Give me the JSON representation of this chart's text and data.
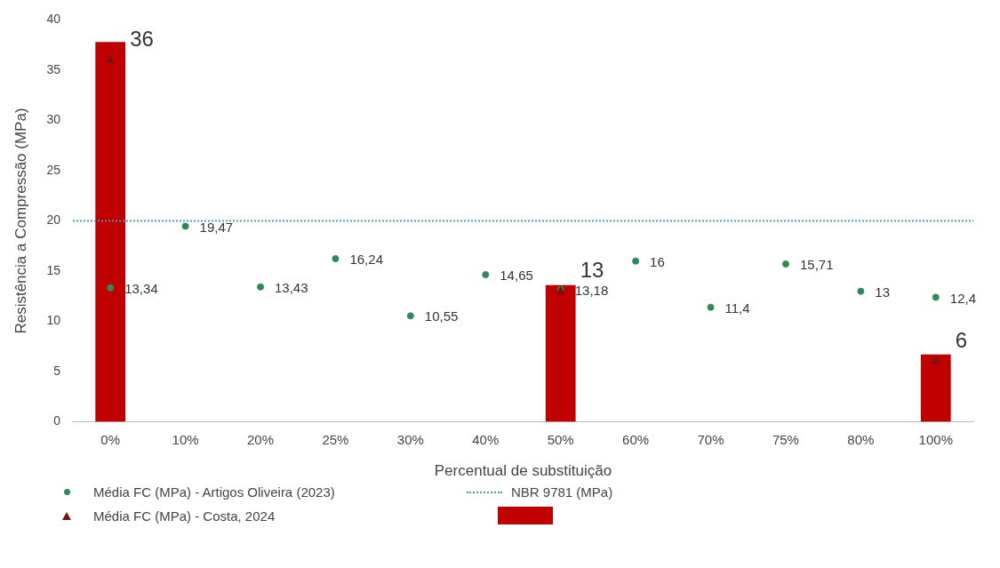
{
  "chart_data": {
    "type": "bar",
    "xlabel": "Percentual de substituição",
    "ylabel": "Resistência a Compressão (MPa)",
    "categories": [
      "0%",
      "10%",
      "20%",
      "25%",
      "30%",
      "40%",
      "50%",
      "60%",
      "70%",
      "75%",
      "80%",
      "100%"
    ],
    "series": [
      {
        "color": "#c00000",
        "values": [
          37.8,
          null,
          null,
          null,
          null,
          null,
          13.6,
          null,
          null,
          null,
          null,
          6.7
        ]
      },
      {
        "type": "scatter",
        "name": "Média FC (MPa) - Costa, 2024",
        "color": "#7b1111",
        "marker": "triangle",
        "values": [
          36,
          null,
          null,
          null,
          null,
          null,
          13,
          null,
          null,
          null,
          null,
          6
        ],
        "value_labels": [
          "36",
          null,
          null,
          null,
          null,
          null,
          "13",
          null,
          null,
          null,
          null,
          "6"
        ]
      },
      {
        "type": "scatter",
        "name": "Média FC (MPa) - Artigos Oliveira (2023)",
        "color": "#2e8b57",
        "marker": "circle",
        "values": [
          13.34,
          19.47,
          13.43,
          16.24,
          10.55,
          14.65,
          13.18,
          16,
          11.4,
          15.71,
          13,
          12.4
        ],
        "value_labels": [
          "13,34",
          "19,47",
          "13,43",
          "16,24",
          "10,55",
          "14,65",
          "13,18",
          "16",
          "11,4",
          "15,71",
          "13",
          "12,4"
        ]
      }
    ],
    "ref_lines": [
      {
        "axis": "y",
        "value": 20,
        "label": "NBR 9781 (MPa)",
        "color": "#4a9bc0",
        "line_style": "dotted"
      }
    ],
    "ylim": [
      0,
      40
    ],
    "yticks": [
      0,
      5,
      10,
      15,
      20,
      25,
      30,
      35,
      40
    ],
    "grid": false,
    "legend": "bottom"
  }
}
